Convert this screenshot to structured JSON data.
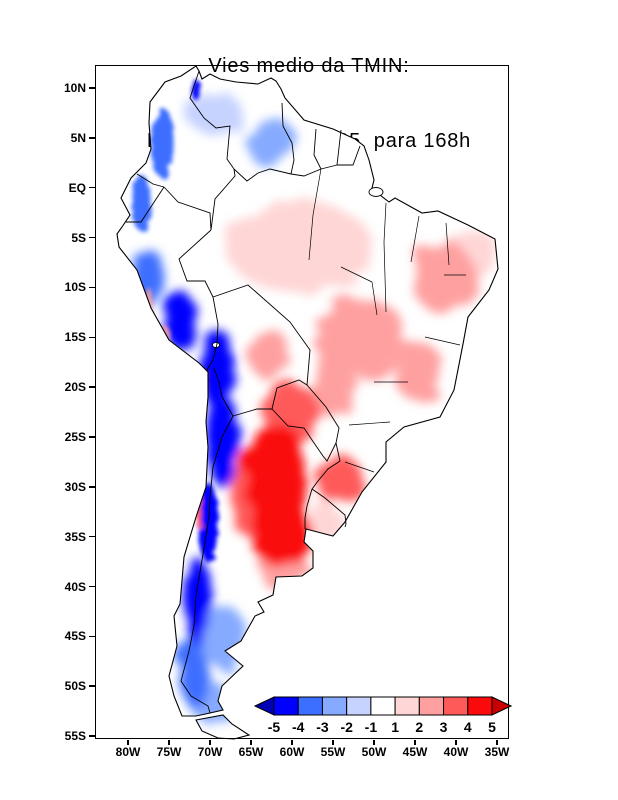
{
  "title": {
    "line1": "Vies medio da TMIN:",
    "line2": "BAM - SAMet 02/2025  para 168h"
  },
  "axes": {
    "lat_labels": [
      "10N",
      "5N",
      "EQ",
      "5S",
      "10S",
      "15S",
      "20S",
      "25S",
      "30S",
      "35S",
      "40S",
      "45S",
      "50S",
      "55S"
    ],
    "lon_labels": [
      "80W",
      "75W",
      "70W",
      "65W",
      "60W",
      "55W",
      "50W",
      "45W",
      "40W",
      "35W"
    ]
  },
  "colorbar": {
    "labels": [
      "-5",
      "-4",
      "-3",
      "-2",
      "-1",
      "1",
      "2",
      "3",
      "4",
      "5"
    ],
    "colors": [
      "#0000b4",
      "#0000ff",
      "#3c6eff",
      "#86aaff",
      "#c6d3ff",
      "#ffffff",
      "#ffd6d6",
      "#ffa0a0",
      "#ff5a5a",
      "#fa0a0a",
      "#c80000"
    ]
  },
  "chart_data": {
    "type": "heatmap",
    "title": "Vies medio da TMIN: BAM - SAMet 02/2025 para 168h",
    "lon_range_w": [
      80,
      35
    ],
    "lat_range": [
      -55,
      10
    ],
    "colorbar_values": [
      -5,
      -4,
      -3,
      -2,
      -1,
      1,
      2,
      3,
      4,
      5
    ],
    "regions": [
      {
        "name": "amazon-basin",
        "lon_w": 59,
        "lat": -6,
        "rx_deg": 9,
        "ry_deg": 4.5,
        "bias": 1.5
      },
      {
        "name": "ne-brazil-coast",
        "lon_w": 37.5,
        "lat": -6.5,
        "rx_deg": 2.5,
        "ry_deg": 2.5,
        "bias": 1.5
      },
      {
        "name": "venezuela-colombia-llanos",
        "lon_w": 69.5,
        "lat": 7.5,
        "rx_deg": 3.5,
        "ry_deg": 2.0,
        "bias": -1.5
      },
      {
        "name": "uruguay",
        "lon_w": 56,
        "lat": -33.5,
        "rx_deg": 2.2,
        "ry_deg": 2.0,
        "bias": 2
      },
      {
        "name": "guyana-highlands",
        "lon_w": 62.5,
        "lat": 4.5,
        "rx_deg": 3.0,
        "ry_deg": 2.5,
        "bias": -2
      },
      {
        "name": "patagonia-interior",
        "lon_w": 68.5,
        "lat": -45,
        "rx_deg": 2.8,
        "ry_deg": 3.2,
        "bias": -2
      },
      {
        "name": "central-brazil",
        "lon_w": 51.5,
        "lat": -15,
        "rx_deg": 5.5,
        "ry_deg": 4.0,
        "bias": 2.5
      },
      {
        "name": "ne-brazil-interior",
        "lon_w": 41.5,
        "lat": -9,
        "rx_deg": 4.0,
        "ry_deg": 3.5,
        "bias": 2.5
      },
      {
        "name": "minas-gerais",
        "lon_w": 44.5,
        "lat": -18.5,
        "rx_deg": 3.0,
        "ry_deg": 3.0,
        "bias": 2.5
      },
      {
        "name": "bolivia-lowlands",
        "lon_w": 63,
        "lat": -16.5,
        "rx_deg": 2.5,
        "ry_deg": 2.5,
        "bias": 2.5
      },
      {
        "name": "buenos-aires-pampas-south",
        "lon_w": 61,
        "lat": -38.5,
        "rx_deg": 3.0,
        "ry_deg": 2.0,
        "bias": 2.5
      },
      {
        "name": "patagonia-south",
        "lon_w": 70,
        "lat": -51.5,
        "rx_deg": 2.5,
        "ry_deg": 2.0,
        "bias": -2.5
      },
      {
        "name": "peru-coast",
        "lon_w": 77.5,
        "lat": -11.5,
        "rx_deg": 0.4,
        "ry_deg": 1.5,
        "bias": 3
      },
      {
        "name": "peru-coast-south",
        "lon_w": 75.5,
        "lat": -15,
        "rx_deg": 0.4,
        "ry_deg": 1.2,
        "bias": 3
      },
      {
        "name": "mato-grosso-do-sul",
        "lon_w": 55,
        "lat": -20,
        "rx_deg": 3.0,
        "ry_deg": 3.0,
        "bias": 3
      },
      {
        "name": "colombia-andes",
        "lon_w": 75.8,
        "lat": 4.5,
        "rx_deg": 1.4,
        "ry_deg": 3.5,
        "bias": -3.5
      },
      {
        "name": "ecuador-andes",
        "lon_w": 78.4,
        "lat": -1.5,
        "rx_deg": 1.2,
        "ry_deg": 2.8,
        "bias": -3.5
      },
      {
        "name": "peru-andes-north",
        "lon_w": 77.5,
        "lat": -9,
        "rx_deg": 1.5,
        "ry_deg": 3.0,
        "bias": -3.5
      },
      {
        "name": "patagonia-andes",
        "lon_w": 71.8,
        "lat": -48.5,
        "rx_deg": 1.8,
        "ry_deg": 3.8,
        "bias": -3.5
      },
      {
        "name": "arica-coast",
        "lon_w": 70.6,
        "lat": -19.5,
        "rx_deg": 0.35,
        "ry_deg": 1.2,
        "bias": 3.5
      },
      {
        "name": "rio-grande-do-sul",
        "lon_w": 54,
        "lat": -29.5,
        "rx_deg": 2.8,
        "ry_deg": 2.5,
        "bias": 3.5
      },
      {
        "name": "central-chile-andes",
        "lon_w": 70.3,
        "lat": -33.5,
        "rx_deg": 1.3,
        "ry_deg": 4.0,
        "bias": -4
      },
      {
        "name": "south-chile-andes",
        "lon_w": 71.6,
        "lat": -41.5,
        "rx_deg": 1.6,
        "ry_deg": 4.5,
        "bias": -4
      },
      {
        "name": "chile-coast-norte-chico",
        "lon_w": 71.4,
        "lat": -31.5,
        "rx_deg": 0.5,
        "ry_deg": 2.5,
        "bias": 4
      },
      {
        "name": "cordoba-san-luis",
        "lon_w": 65.5,
        "lat": -31.5,
        "rx_deg": 2.0,
        "ry_deg": 3.5,
        "bias": 4
      },
      {
        "name": "paraguay",
        "lon_w": 60,
        "lat": -23,
        "rx_deg": 3.5,
        "ry_deg": 3.5,
        "bias": 4
      },
      {
        "name": "peru-andes-south",
        "lon_w": 73.5,
        "lat": -13.5,
        "rx_deg": 2.0,
        "ry_deg": 3.0,
        "bias": -4.5
      },
      {
        "name": "lake-maracaibo",
        "lon_w": 71.6,
        "lat": 9.7,
        "rx_deg": 0.7,
        "ry_deg": 1.0,
        "bias": -5
      },
      {
        "name": "altiplano-bolivia",
        "lon_w": 69.3,
        "lat": -18,
        "rx_deg": 2.2,
        "ry_deg": 4.0,
        "bias": -5
      },
      {
        "name": "atacama-nw-argentina",
        "lon_w": 68.3,
        "lat": -25.5,
        "rx_deg": 2.2,
        "ry_deg": 4.5,
        "bias": -5
      },
      {
        "name": "gran-chaco-core",
        "lon_w": 62,
        "lat": -28.5,
        "rx_deg": 4.0,
        "ry_deg": 5.0,
        "bias": 5
      },
      {
        "name": "pampas-core",
        "lon_w": 61.5,
        "lat": -34.5,
        "rx_deg": 3.5,
        "ry_deg": 3.5,
        "bias": 5
      }
    ]
  }
}
